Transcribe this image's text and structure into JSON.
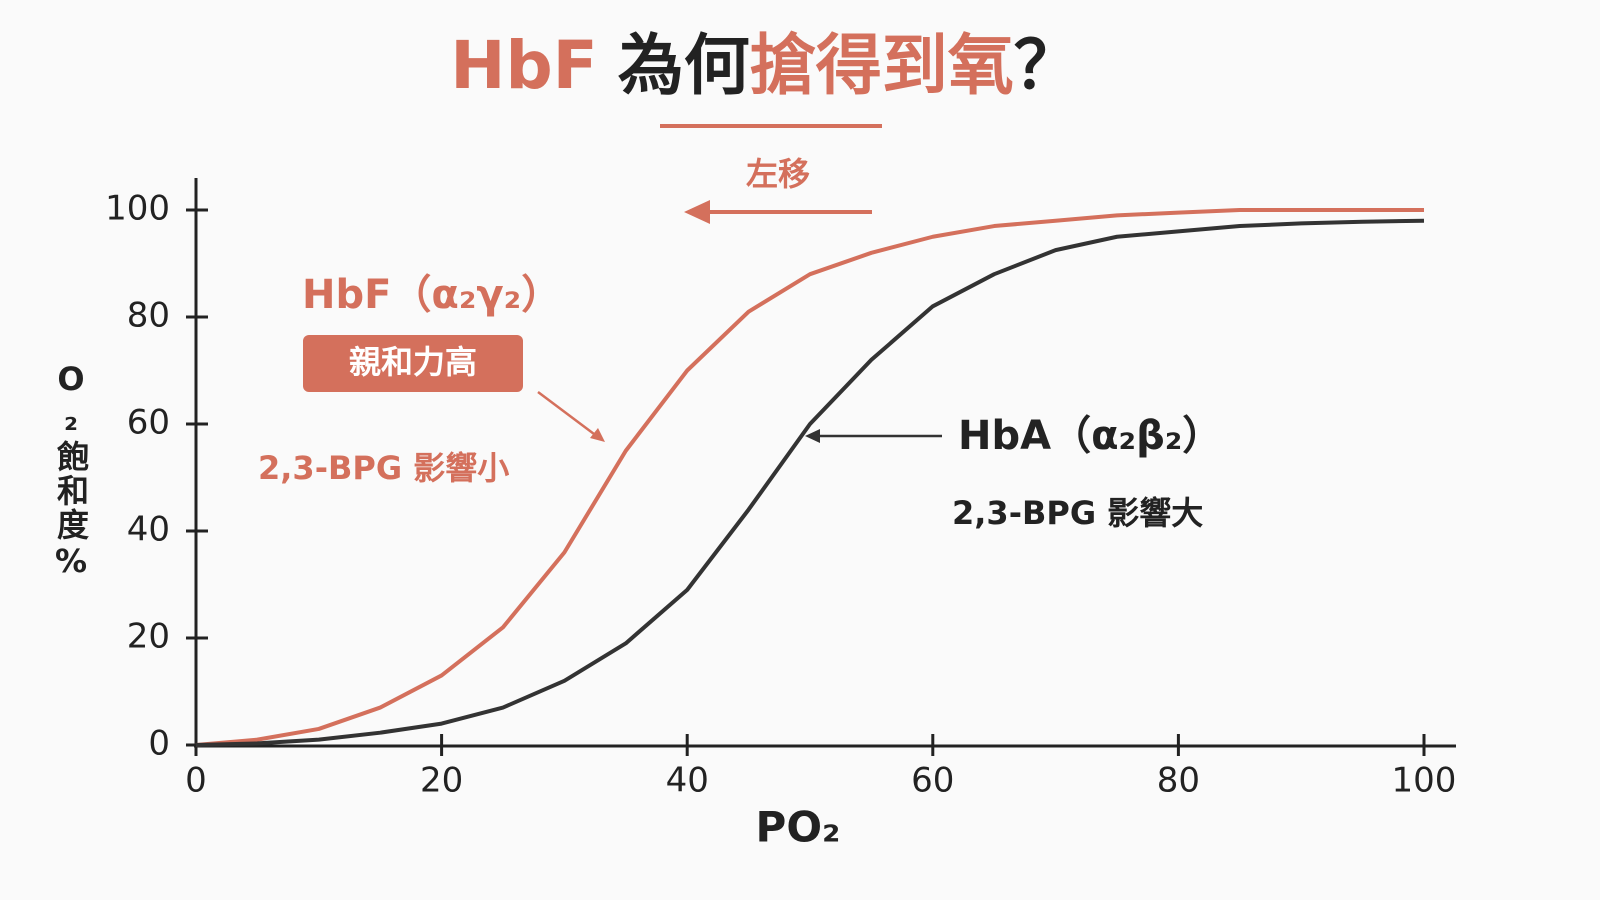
{
  "chart_data": {
    "type": "line",
    "title_parts": [
      "HbF",
      "為何",
      "搶得到氧",
      "？"
    ],
    "x_label": "PO₂",
    "y_label": "O₂飽和度%",
    "x": [
      0,
      5,
      10,
      15,
      20,
      25,
      30,
      35,
      40,
      45,
      50,
      55,
      60,
      65,
      70,
      75,
      80,
      85,
      90,
      95,
      100
    ],
    "series": [
      {
        "name": "HbF（α₂γ₂）",
        "color": "#d4705c",
        "values": [
          0,
          1,
          3,
          7,
          13,
          22,
          36,
          55,
          70,
          81,
          88,
          92,
          95,
          97,
          98,
          99,
          99.5,
          100,
          100,
          100,
          100
        ]
      },
      {
        "name": "HbA（α₂β₂）",
        "color": "#333333",
        "values": [
          0,
          0.3,
          1,
          2.3,
          4,
          7,
          12,
          19,
          29,
          44,
          60,
          72,
          82,
          88,
          92.5,
          95,
          96,
          97,
          97.5,
          97.8,
          98
        ]
      }
    ],
    "annotations": {
      "shift": "左移",
      "affinity": "親和力高",
      "hbf_bpg": "2,3-BPG 影響小",
      "hba_bpg": "2,3-BPG 影響大"
    },
    "xlim": [
      0,
      100
    ],
    "ylim": [
      0,
      100
    ],
    "xticks": [
      0,
      20,
      40,
      60,
      80,
      100
    ],
    "yticks": [
      0,
      20,
      40,
      60,
      80,
      100
    ],
    "grid": false
  }
}
